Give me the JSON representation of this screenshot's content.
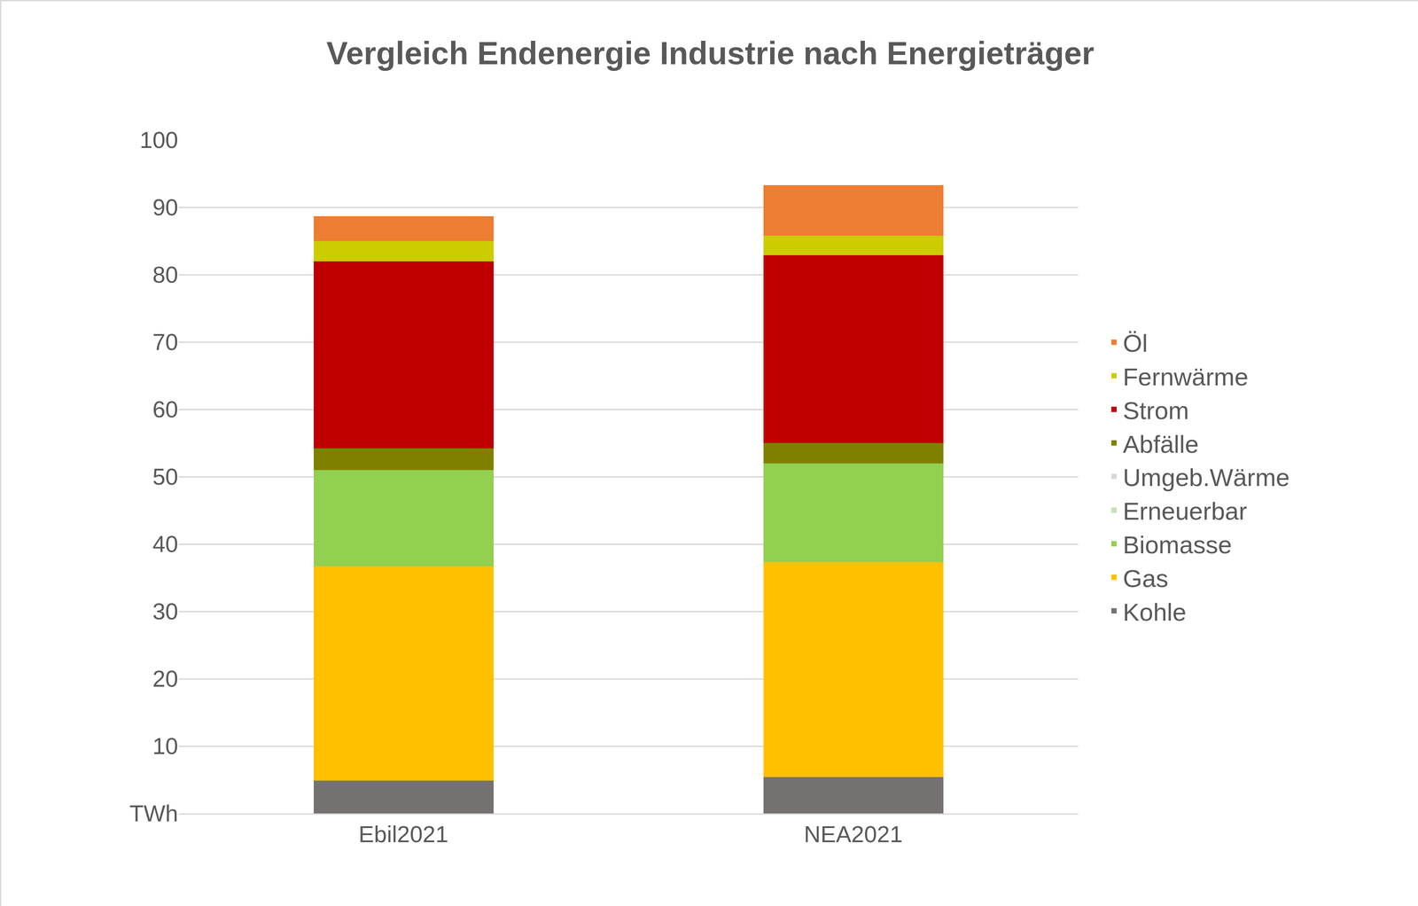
{
  "chart_data": {
    "type": "bar",
    "title": "Vergleich Endenergie Industrie nach Energieträger",
    "categories": [
      "Ebil2021",
      "NEA2021"
    ],
    "stacked": true,
    "grid": true,
    "legend": "right",
    "ylim": [
      0,
      100
    ],
    "yticks": [
      {
        "value": 0,
        "label": "TWh"
      },
      10,
      20,
      30,
      40,
      50,
      60,
      70,
      80,
      90,
      100
    ],
    "series": [
      {
        "name": "Kohle",
        "color": "#767171",
        "values": [
          4.9,
          5.4
        ]
      },
      {
        "name": "Gas",
        "color": "#FFC000",
        "values": [
          31.8,
          31.9
        ]
      },
      {
        "name": "Biomasse",
        "color": "#92D050",
        "values": [
          14.3,
          14.7
        ]
      },
      {
        "name": "Erneuerbar",
        "color": "#C5E0B4",
        "values": [
          0,
          0
        ]
      },
      {
        "name": "Umgeb.Wärme",
        "color": "#D9D9D9",
        "values": [
          0,
          0
        ]
      },
      {
        "name": "Abfälle",
        "color": "#808000",
        "values": [
          3.2,
          3.0
        ]
      },
      {
        "name": "Strom",
        "color": "#C00000",
        "values": [
          27.8,
          27.9
        ]
      },
      {
        "name": "Fernwärme",
        "color": "#CCCC00",
        "values": [
          3.0,
          2.9
        ]
      },
      {
        "name": "Öl",
        "color": "#ED7D31",
        "values": [
          3.7,
          7.5
        ]
      }
    ]
  }
}
